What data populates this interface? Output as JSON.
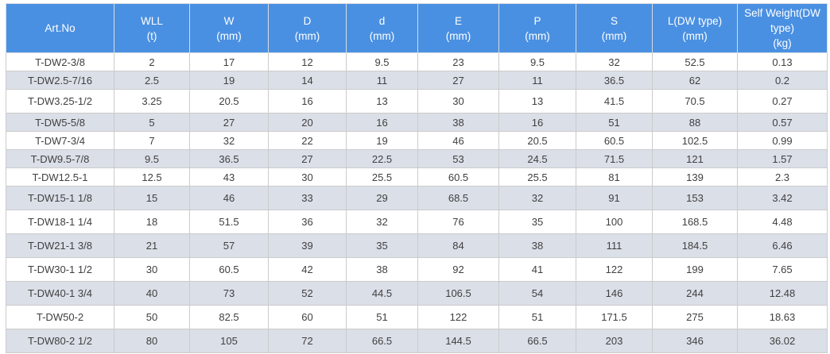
{
  "colors": {
    "header_bg": "#4a90e2",
    "header_text": "#ffffff",
    "stripe_bg": "#dbdfe8",
    "row_bg": "#ffffff",
    "body_text": "#404040",
    "border": "#cbcbcb"
  },
  "chart_data": {
    "type": "table",
    "title": "",
    "columns": [
      {
        "label": "Art.No",
        "sub": ""
      },
      {
        "label": "WLL",
        "sub": "(t)"
      },
      {
        "label": "W",
        "sub": "(mm)"
      },
      {
        "label": "D",
        "sub": "(mm)"
      },
      {
        "label": "d",
        "sub": "(mm)"
      },
      {
        "label": "E",
        "sub": "(mm)"
      },
      {
        "label": "P",
        "sub": "(mm)"
      },
      {
        "label": "S",
        "sub": "(mm)"
      },
      {
        "label": "L(DW type)",
        "sub": "(mm)"
      },
      {
        "label": "Self Weight(DW type)",
        "sub": "(kg)"
      }
    ],
    "rows": [
      [
        "T-DW2-3/8",
        "2",
        "17",
        "12",
        "9.5",
        "23",
        "9.5",
        "32",
        "52.5",
        "0.13"
      ],
      [
        "T-DW2.5-7/16",
        "2.5",
        "19",
        "14",
        "11",
        "27",
        "11",
        "36.5",
        "62",
        "0.2"
      ],
      [
        "T-DW3.25-1/2",
        "3.25",
        "20.5",
        "16",
        "13",
        "30",
        "13",
        "41.5",
        "70.5",
        "0.27"
      ],
      [
        "T-DW5-5/8",
        "5",
        "27",
        "20",
        "16",
        "38",
        "16",
        "51",
        "88",
        "0.57"
      ],
      [
        "T-DW7-3/4",
        "7",
        "32",
        "22",
        "19",
        "46",
        "20.5",
        "60.5",
        "102.5",
        "0.99"
      ],
      [
        "T-DW9.5-7/8",
        "9.5",
        "36.5",
        "27",
        "22.5",
        "53",
        "24.5",
        "71.5",
        "121",
        "1.57"
      ],
      [
        "T-DW12.5-1",
        "12.5",
        "43",
        "30",
        "25.5",
        "60.5",
        "25.5",
        "81",
        "139",
        "2.3"
      ],
      [
        "T-DW15-1 1/8",
        "15",
        "46",
        "33",
        "29",
        "68.5",
        "32",
        "91",
        "153",
        "3.42"
      ],
      [
        "T-DW18-1 1/4",
        "18",
        "51.5",
        "36",
        "32",
        "76",
        "35",
        "100",
        "168.5",
        "4.48"
      ],
      [
        "T-DW21-1 3/8",
        "21",
        "57",
        "39",
        "35",
        "84",
        "38",
        "111",
        "184.5",
        "6.46"
      ],
      [
        "T-DW30-1 1/2",
        "30",
        "60.5",
        "42",
        "38",
        "92",
        "41",
        "122",
        "199",
        "7.65"
      ],
      [
        "T-DW40-1 3/4",
        "40",
        "73",
        "52",
        "44.5",
        "106.5",
        "54",
        "146",
        "244",
        "12.48"
      ],
      [
        "T-DW50-2",
        "50",
        "82.5",
        "60",
        "51",
        "122",
        "51",
        "171.5",
        "275",
        "18.63"
      ],
      [
        "T-DW80-2 1/2",
        "80",
        "105",
        "72",
        "66.5",
        "144.5",
        "66.5",
        "203",
        "346",
        "36.02"
      ]
    ]
  }
}
